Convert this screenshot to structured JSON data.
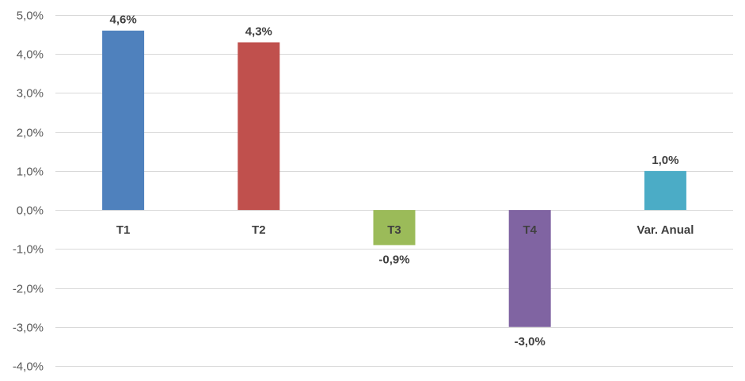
{
  "chart_data": {
    "type": "bar",
    "categories": [
      "T1",
      "T2",
      "T3",
      "T4",
      "Var. Anual"
    ],
    "values": [
      4.6,
      4.3,
      -0.9,
      -3.0,
      1.0
    ],
    "data_labels": [
      "4,6%",
      "4,3%",
      "-0,9%",
      "-3,0%",
      "1,0%"
    ],
    "colors": [
      "#4f81bd",
      "#c0504d",
      "#9bbb59",
      "#8064a2",
      "#4bacc6"
    ],
    "ylim": [
      -4,
      5
    ],
    "yticks": [
      5,
      4,
      3,
      2,
      1,
      0,
      -1,
      -2,
      -3,
      -4
    ],
    "ytick_labels": [
      "5,0%",
      "4,0%",
      "3,0%",
      "2,0%",
      "1,0%",
      "0,0%",
      "-1,0%",
      "-2,0%",
      "-3,0%",
      "-4,0%"
    ],
    "grid": true,
    "legend": "none"
  }
}
